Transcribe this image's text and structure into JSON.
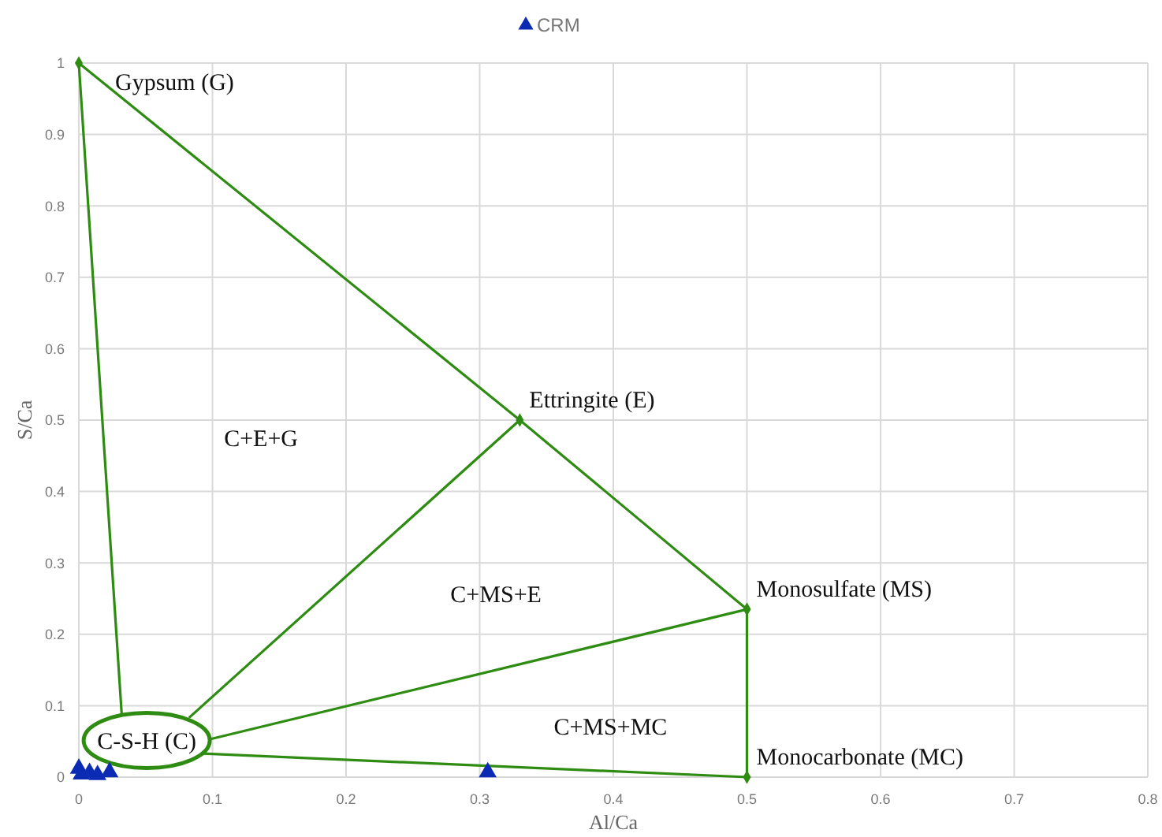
{
  "chart_data": {
    "type": "scatter",
    "xlabel": "Al/Ca",
    "ylabel": "S/Ca",
    "xlim": [
      0,
      0.8
    ],
    "ylim": [
      0,
      1
    ],
    "xticks": [
      0,
      0.1,
      0.2,
      0.3,
      0.4,
      0.5,
      0.6,
      0.7,
      0.8
    ],
    "yticks": [
      0,
      0.1,
      0.2,
      0.3,
      0.4,
      0.5,
      0.6,
      0.7,
      0.8,
      0.9,
      1
    ],
    "grid": true,
    "legend": "top",
    "series": [
      {
        "type": "line",
        "color": "#2f8c12",
        "marker": "diamond",
        "x": [
          0,
          0.33,
          0.5,
          0.5
        ],
        "values": [
          1,
          0.5,
          0.235,
          0
        ]
      },
      {
        "type": "line",
        "color": "#2f8c12",
        "marker": "none",
        "x": [
          0,
          0.032
        ],
        "values": [
          1,
          0.09
        ]
      },
      {
        "type": "line",
        "color": "#2f8c12",
        "marker": "none",
        "x": [
          0.33,
          0.083
        ],
        "values": [
          0.5,
          0.084
        ]
      },
      {
        "type": "line",
        "color": "#2f8c12",
        "marker": "none",
        "x": [
          0.5,
          0.098
        ],
        "values": [
          0.235,
          0.053
        ]
      },
      {
        "type": "line",
        "color": "#2f8c12",
        "marker": "none",
        "x": [
          0.5,
          0.093
        ],
        "values": [
          0,
          0.033
        ]
      },
      {
        "name": "CRM",
        "color": "#0c2bb4",
        "marker": "triangle",
        "x": [
          0,
          0.002,
          0.008,
          0.014,
          0.023,
          0.306
        ],
        "values": [
          0.012,
          0.004,
          0.006,
          0.003,
          0.007,
          0.007
        ]
      }
    ],
    "annotations": [
      {
        "text": "Gypsum (G)",
        "x": 0,
        "y": 1
      },
      {
        "text": "Ettringite (E)",
        "x": 0.33,
        "y": 0.5
      },
      {
        "text": "Monosulfate (MS)",
        "x": 0.5,
        "y": 0.235
      },
      {
        "text": "Monocarbonate (MC)",
        "x": 0.5,
        "y": 0
      },
      "C+E+G",
      "C+MS+E",
      "C+MS+MC",
      "C-S-H (C)"
    ]
  }
}
